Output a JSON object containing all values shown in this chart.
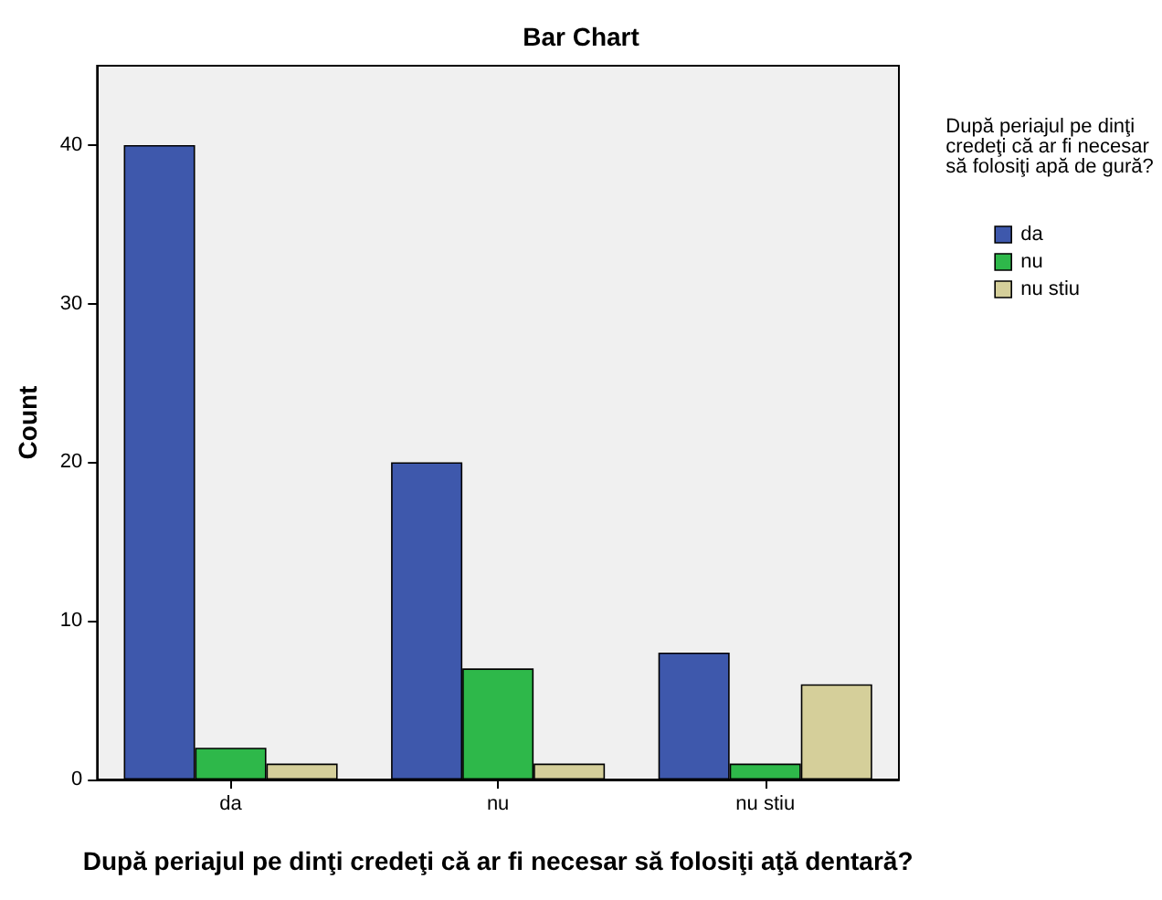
{
  "chart_data": {
    "type": "bar",
    "title": "Bar Chart",
    "xlabel": "După periajul pe dinţi credeţi că ar fi necesar să folosiţi aţă dentară?",
    "ylabel": "Count",
    "legend_title": "După periajul pe dinţi credeţi că ar fi necesar să folosiţi apă de gură?",
    "categories": [
      "da",
      "nu",
      "nu stiu"
    ],
    "series": [
      {
        "name": "da",
        "color": "#3e58ac",
        "values": [
          40,
          20,
          8
        ]
      },
      {
        "name": "nu",
        "color": "#2eb84a",
        "values": [
          2,
          7,
          1
        ]
      },
      {
        "name": "nu stiu",
        "color": "#d5cf9a",
        "values": [
          1,
          1,
          6
        ]
      }
    ],
    "ylim": [
      0,
      45
    ],
    "yticks": [
      0,
      10,
      20,
      30,
      40
    ],
    "grid": false,
    "legend": "top right"
  }
}
